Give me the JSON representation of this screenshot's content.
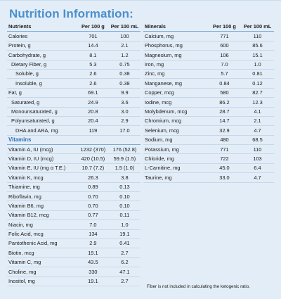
{
  "title": "Nutrition Information:",
  "left": {
    "headers": [
      "Nutrients",
      "Per 100 g",
      "Per 100 mL"
    ],
    "rows": [
      {
        "name": "Calories",
        "g": "701",
        "ml": "100",
        "level": 0
      },
      {
        "name": "Protein, g",
        "g": "14.4",
        "ml": "2.1",
        "level": 0
      },
      {
        "name": "Carbohydrate, g",
        "g": "8.1",
        "ml": "1.2",
        "level": 0
      },
      {
        "name": "Dietary Fiber, g",
        "g": "5.3",
        "ml": "0.75",
        "level": 1
      },
      {
        "name": "Soluble, g",
        "g": "2.6",
        "ml": "0.38",
        "level": 2
      },
      {
        "name": "Insoluble, g",
        "g": "2.6",
        "ml": "0.38",
        "level": 2
      },
      {
        "name": "Fat, g",
        "g": "69.1",
        "ml": "9.9",
        "level": 0
      },
      {
        "name": "Saturated, g",
        "g": "24.9",
        "ml": "3.6",
        "level": 1
      },
      {
        "name": "Monounsaturated, g",
        "g": "20.8",
        "ml": "3.0",
        "level": 1
      },
      {
        "name": "Polyunsaturated, g",
        "g": "20.4",
        "ml": "2.9",
        "level": 1
      },
      {
        "name": "DHA and ARA, mg",
        "g": "119",
        "ml": "17.0",
        "level": 2
      },
      {
        "name": "Vitamins",
        "g": "",
        "ml": "",
        "level": -1
      },
      {
        "name": "Vitamin A, IU (mcg)",
        "g": "1232 (370)",
        "ml": "176 (52.8)",
        "level": 0
      },
      {
        "name": "Vitamin D, IU (mcg)",
        "g": "420 (10.5)",
        "ml": "59.9 (1.5)",
        "level": 0
      },
      {
        "name": "Vitamin E, IU (mg α T.E.)",
        "g": "10.7 (7.2)",
        "ml": "1.5 (1.0)",
        "level": 0
      },
      {
        "name": "Vitamin  K, mcg",
        "g": "26.3",
        "ml": "3.8",
        "level": 0
      },
      {
        "name": "Thiamine, mg",
        "g": "0.89",
        "ml": "0.13",
        "level": 0
      },
      {
        "name": "Riboflavin, mg",
        "g": "0.70",
        "ml": "0.10",
        "level": 0
      },
      {
        "name": "Vitamin B6, mg",
        "g": "0.70",
        "ml": "0.10",
        "level": 0
      },
      {
        "name": "Vitamin B12, mcg",
        "g": "0.77",
        "ml": "0.11",
        "level": 0
      },
      {
        "name": "Niacin, mg",
        "g": "7.0",
        "ml": "1.0",
        "level": 0
      },
      {
        "name": "Folic Acid, mcg",
        "g": "134",
        "ml": "19.1",
        "level": 0
      },
      {
        "name": "Pantothenic Acid, mg",
        "g": "2.9",
        "ml": "0.41",
        "level": 0
      },
      {
        "name": "Biotin, mcg",
        "g": "19.1",
        "ml": "2.7",
        "level": 0
      },
      {
        "name": "Vitamin C, mg",
        "g": "43.5",
        "ml": "6.2",
        "level": 0
      },
      {
        "name": "Choline, mg",
        "g": "330",
        "ml": "47.1",
        "level": 0
      },
      {
        "name": "Inositol, mg",
        "g": "19.1",
        "ml": "2.7",
        "level": 0
      }
    ]
  },
  "right": {
    "headers": [
      "Minerals",
      "Per 100 g",
      "Per 100 mL"
    ],
    "rows": [
      {
        "name": "Calcium, mg",
        "g": "771",
        "ml": "110"
      },
      {
        "name": "Phosphorus, mg",
        "g": "600",
        "ml": "85.6"
      },
      {
        "name": "Magnesium, mg",
        "g": "106",
        "ml": "15.1"
      },
      {
        "name": "Iron, mg",
        "g": "7.0",
        "ml": "1.0"
      },
      {
        "name": "Zinc, mg",
        "g": "5.7",
        "ml": "0.81"
      },
      {
        "name": "Manganese, mg",
        "g": "0.84",
        "ml": "0.12"
      },
      {
        "name": "Copper, mcg",
        "g": "580",
        "ml": "82.7"
      },
      {
        "name": "Iodine, mcg",
        "g": "86.2",
        "ml": "12.3"
      },
      {
        "name": "Molybdenum, mcg",
        "g": "28.7",
        "ml": "4.1"
      },
      {
        "name": "Chromium, mcg",
        "g": "14.7",
        "ml": "2.1"
      },
      {
        "name": "Selenium, mcg",
        "g": "32.9",
        "ml": "4.7"
      },
      {
        "name": "Sodium, mg",
        "g": "480",
        "ml": "68.5"
      },
      {
        "name": "Potassium, mg",
        "g": "771",
        "ml": "110"
      },
      {
        "name": "Chloride, mg",
        "g": "722",
        "ml": "103"
      },
      {
        "name": "L-Carnitine, mg",
        "g": "45.0",
        "ml": "6.4"
      },
      {
        "name": "Taurine, mg",
        "g": "33.0",
        "ml": "4.7"
      }
    ]
  },
  "footnote": "Fiber is not included in calculating the ketogenic ratio."
}
